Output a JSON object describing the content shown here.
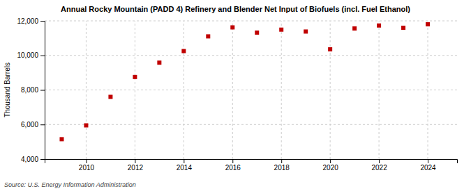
{
  "chart_data": {
    "type": "scatter",
    "title": "Annual Rocky Mountain (PADD 4) Refinery and Blender Net Input of Biofuels (incl. Fuel Ethanol)",
    "ylabel": "Thousand Barrels",
    "annotations": [
      "Source: U.S. Energy Information Administration"
    ],
    "x": [
      2009,
      2010,
      2011,
      2012,
      2013,
      2014,
      2015,
      2016,
      2017,
      2018,
      2019,
      2020,
      2021,
      2022,
      2023,
      2024
    ],
    "values": [
      5150,
      5950,
      7600,
      8750,
      9580,
      10250,
      11100,
      11620,
      11320,
      11490,
      11380,
      10350,
      11560,
      11730,
      11600,
      11800
    ],
    "color": "#c00000",
    "marker": "square",
    "xlim": [
      2008.3,
      2025.2
    ],
    "xticks": [
      2010,
      2012,
      2014,
      2016,
      2018,
      2020,
      2022,
      2024
    ],
    "ylim": [
      4000,
      12000
    ],
    "yticks": [
      {
        "value": 4000,
        "label": "4,000"
      },
      {
        "value": 6000,
        "label": "6,000"
      },
      {
        "value": 8000,
        "label": "8,000"
      },
      {
        "value": 10000,
        "label": "10,000"
      },
      {
        "value": 12000,
        "label": "12,000"
      }
    ],
    "grid": true
  }
}
